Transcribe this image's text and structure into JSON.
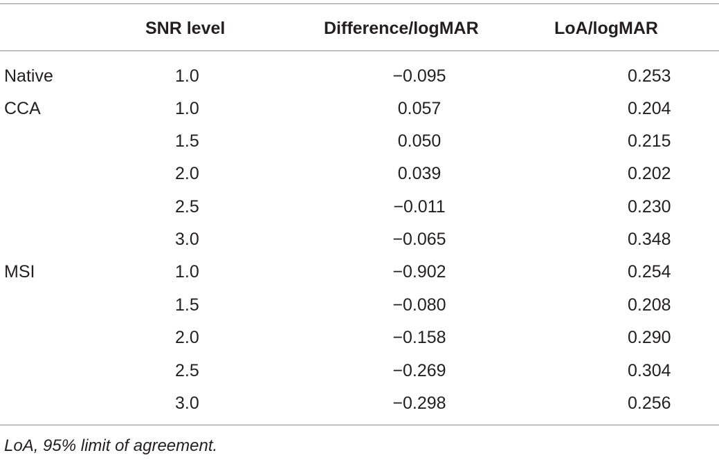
{
  "table": {
    "headers": {
      "group": "",
      "snr": "SNR level",
      "difference": "Difference/logMAR",
      "loa": "LoA/logMAR"
    },
    "rows": [
      {
        "group": "Native",
        "snr": "1.0",
        "difference": "−0.095",
        "loa": "0.253"
      },
      {
        "group": "CCA",
        "snr": "1.0",
        "difference": "0.057",
        "loa": "0.204"
      },
      {
        "group": "",
        "snr": "1.5",
        "difference": "0.050",
        "loa": "0.215"
      },
      {
        "group": "",
        "snr": "2.0",
        "difference": "0.039",
        "loa": "0.202"
      },
      {
        "group": "",
        "snr": "2.5",
        "difference": "−0.011",
        "loa": "0.230"
      },
      {
        "group": "",
        "snr": "3.0",
        "difference": "−0.065",
        "loa": "0.348"
      },
      {
        "group": "MSI",
        "snr": "1.0",
        "difference": "−0.902",
        "loa": "0.254"
      },
      {
        "group": "",
        "snr": "1.5",
        "difference": "−0.080",
        "loa": "0.208"
      },
      {
        "group": "",
        "snr": "2.0",
        "difference": "−0.158",
        "loa": "0.290"
      },
      {
        "group": "",
        "snr": "2.5",
        "difference": "−0.269",
        "loa": "0.304"
      },
      {
        "group": "",
        "snr": "3.0",
        "difference": "−0.298",
        "loa": "0.256"
      }
    ],
    "footnote": "LoA, 95% limit of agreement."
  }
}
